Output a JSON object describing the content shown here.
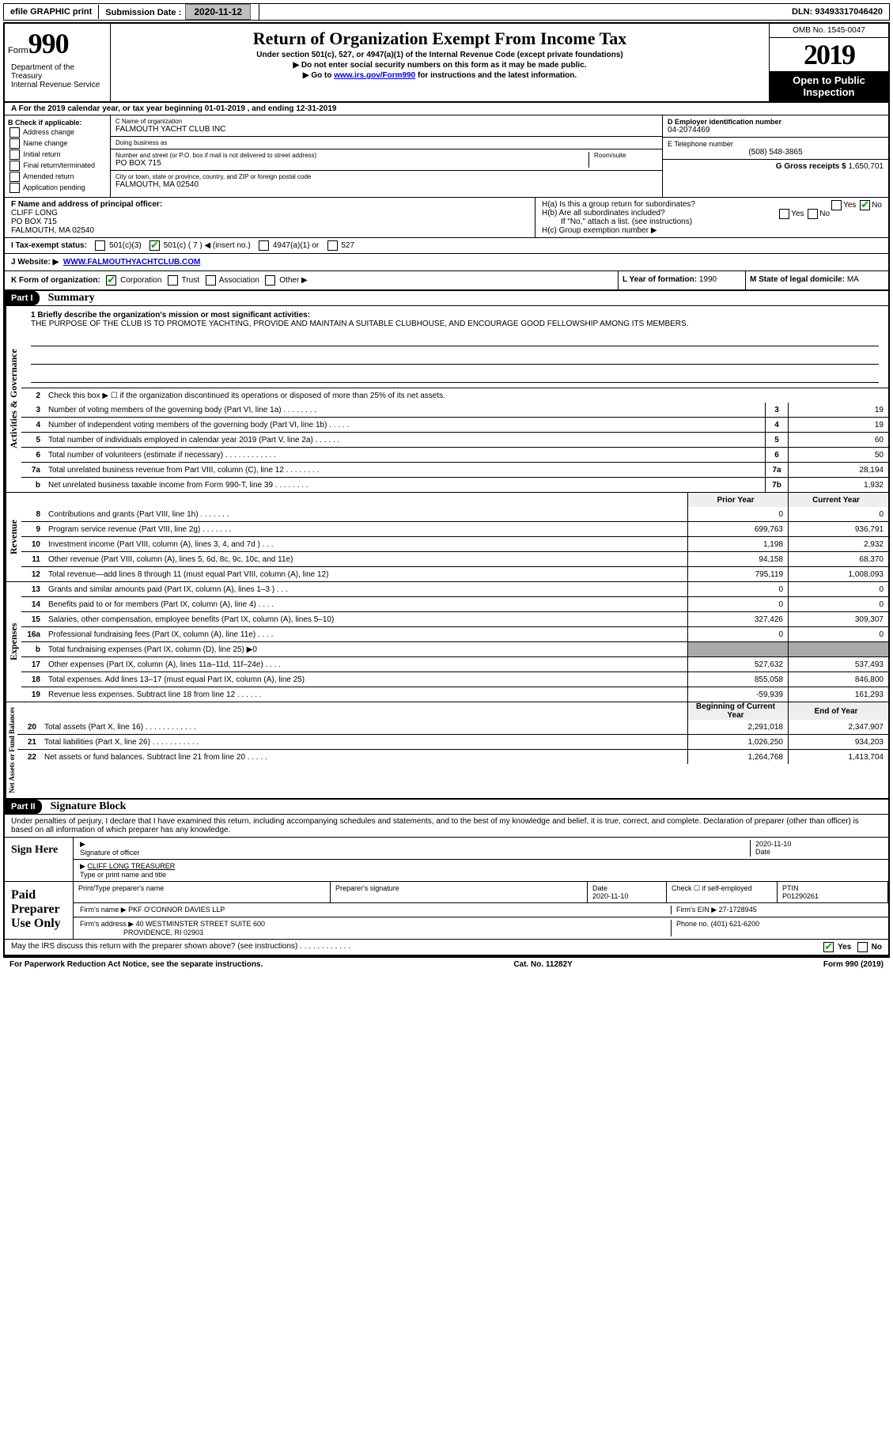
{
  "topbar": {
    "efile": "efile GRAPHIC print",
    "sub_label": "Submission Date : ",
    "sub_date": "2020-11-12",
    "dln_label": "DLN: ",
    "dln": "93493317046420"
  },
  "header": {
    "form_word": "Form",
    "form_num": "990",
    "title": "Return of Organization Exempt From Income Tax",
    "subtitle": "Under section 501(c), 527, or 4947(a)(1) of the Internal Revenue Code (except private foundations)",
    "note1": "▶ Do not enter social security numbers on this form as it may be made public.",
    "note2_pre": "▶ Go to ",
    "note2_link": "www.irs.gov/Form990",
    "note2_post": " for instructions and the latest information.",
    "omb": "OMB No. 1545-0047",
    "year": "2019",
    "open": "Open to Public Inspection",
    "dept": "Department of the Treasury\nInternal Revenue Service"
  },
  "A": {
    "text": "A For the 2019 calendar year, or tax year beginning 01-01-2019     , and ending 12-31-2019"
  },
  "B": {
    "label": "B Check if applicable:",
    "items": [
      "Address change",
      "Name change",
      "Initial return",
      "Final return/terminated",
      "Amended return",
      "Application pending"
    ]
  },
  "C": {
    "name_label": "C Name of organization",
    "name": "FALMOUTH YACHT CLUB INC",
    "dba_label": "Doing business as",
    "dba": "",
    "street_label": "Number and street (or P.O. box if mail is not delivered to street address)",
    "room_label": "Room/suite",
    "street": "PO BOX 715",
    "city_label": "City or town, state or province, country, and ZIP or foreign postal code",
    "city": "FALMOUTH, MA  02540"
  },
  "D": {
    "label": "D Employer identification number",
    "ein": "04-2074469"
  },
  "E": {
    "label": "E Telephone number",
    "phone": "(508) 548-3865"
  },
  "G": {
    "label": "G Gross receipts $",
    "amount": "1,650,701"
  },
  "F": {
    "label": "F  Name and address of principal officer:",
    "name": "CLIFF LONG",
    "addr1": "PO BOX 715",
    "addr2": "FALMOUTH, MA  02540"
  },
  "H": {
    "a": "H(a)  Is this a group return for subordinates?",
    "a_yes": "Yes",
    "a_no": "No",
    "b": "H(b)  Are all subordinates included?",
    "b_yes": "Yes",
    "b_no": "No",
    "b_note": "If \"No,\" attach a list. (see instructions)",
    "c": "H(c)  Group exemption number ▶"
  },
  "I": {
    "label": "I    Tax-exempt status:",
    "opts": [
      "501(c)(3)",
      "501(c) ( 7 ) ◀ (insert no.)",
      "4947(a)(1) or",
      "527"
    ]
  },
  "J": {
    "label": "J    Website: ▶",
    "url": "WWW.FALMOUTHYACHTCLUB.COM"
  },
  "K": {
    "label": "K Form of organization:",
    "opts": [
      "Corporation",
      "Trust",
      "Association",
      "Other ▶"
    ]
  },
  "L": {
    "label": "L Year of formation:",
    "val": "1990"
  },
  "M": {
    "label": "M State of legal domicile:",
    "val": "MA"
  },
  "part1": {
    "hdr": "Part I",
    "title": "Summary",
    "l1_label": "1  Briefly describe the organization's mission or most significant activities:",
    "mission": "THE PURPOSE OF THE CLUB IS TO PROMOTE YACHTING, PROVIDE AND MAINTAIN A SUITABLE CLUBHOUSE, AND ENCOURAGE GOOD FELLOWSHIP AMONG ITS MEMBERS.",
    "l2": "Check this box ▶ ☐  if the organization discontinued its operations or disposed of more than 25% of its net assets.",
    "vtab_ag": "Activities & Governance",
    "vtab_rev": "Revenue",
    "vtab_exp": "Expenses",
    "vtab_na": "Net Assets or Fund Balances",
    "lines_ag": [
      {
        "n": "3",
        "t": "Number of voting members of the governing body (Part VI, line 1a)  .    .    .    .    .    .    .    .",
        "box": "3",
        "v": "19"
      },
      {
        "n": "4",
        "t": "Number of independent voting members of the governing body (Part VI, line 1b)  .    .    .    .    .",
        "box": "4",
        "v": "19"
      },
      {
        "n": "5",
        "t": "Total number of individuals employed in calendar year 2019 (Part V, line 2a)  .    .    .    .    .    .",
        "box": "5",
        "v": "60"
      },
      {
        "n": "6",
        "t": "Total number of volunteers (estimate if necessary)    .    .    .    .    .    .    .    .    .    .    .    .",
        "box": "6",
        "v": "50"
      },
      {
        "n": "7a",
        "t": "Total unrelated business revenue from Part VIII, column (C), line 12  .    .    .    .    .    .    .    .",
        "box": "7a",
        "v": "28,194"
      },
      {
        "n": "b",
        "t": "Net unrelated business taxable income from Form 990-T, line 39    .    .    .    .    .    .    .    .",
        "box": "7b",
        "v": "1,932"
      }
    ],
    "py_hdr": "Prior Year",
    "cy_hdr": "Current Year",
    "lines_rev": [
      {
        "n": "8",
        "t": "Contributions and grants (Part VIII, line 1h)   .    .    .    .    .    .    .",
        "py": "0",
        "cy": "0"
      },
      {
        "n": "9",
        "t": "Program service revenue (Part VIII, line 2g)   .    .    .    .    .    .    .",
        "py": "699,763",
        "cy": "936,791"
      },
      {
        "n": "10",
        "t": "Investment income (Part VIII, column (A), lines 3, 4, and 7d )   .    .    .",
        "py": "1,198",
        "cy": "2,932"
      },
      {
        "n": "11",
        "t": "Other revenue (Part VIII, column (A), lines 5, 6d, 8c, 9c, 10c, and 11e)",
        "py": "94,158",
        "cy": "68,370"
      },
      {
        "n": "12",
        "t": "Total revenue—add lines 8 through 11 (must equal Part VIII, column (A), line 12)",
        "py": "795,119",
        "cy": "1,008,093"
      }
    ],
    "lines_exp": [
      {
        "n": "13",
        "t": "Grants and similar amounts paid (Part IX, column (A), lines 1–3 )  .    .    .",
        "py": "0",
        "cy": "0"
      },
      {
        "n": "14",
        "t": "Benefits paid to or for members (Part IX, column (A), line 4)  .    .    .    .",
        "py": "0",
        "cy": "0"
      },
      {
        "n": "15",
        "t": "Salaries, other compensation, employee benefits (Part IX, column (A), lines 5–10)",
        "py": "327,426",
        "cy": "309,307"
      },
      {
        "n": "16a",
        "t": "Professional fundraising fees (Part IX, column (A), line 11e)  .    .    .    .",
        "py": "0",
        "cy": "0"
      },
      {
        "n": "b",
        "t": "Total fundraising expenses (Part IX, column (D), line 25) ▶0",
        "py": "",
        "cy": "",
        "gray": true
      },
      {
        "n": "17",
        "t": "Other expenses (Part IX, column (A), lines 11a–11d, 11f–24e)  .    .    .    .",
        "py": "527,632",
        "cy": "537,493"
      },
      {
        "n": "18",
        "t": "Total expenses. Add lines 13–17 (must equal Part IX, column (A), line 25)",
        "py": "855,058",
        "cy": "846,800"
      },
      {
        "n": "19",
        "t": "Revenue less expenses. Subtract line 18 from line 12  .    .    .    .    .    .",
        "py": "-59,939",
        "cy": "161,293"
      }
    ],
    "na_hdr_py": "Beginning of Current Year",
    "na_hdr_cy": "End of Year",
    "lines_na": [
      {
        "n": "20",
        "t": "Total assets (Part X, line 16)  .    .    .    .    .    .    .    .    .    .    .    .",
        "py": "2,291,018",
        "cy": "2,347,907"
      },
      {
        "n": "21",
        "t": "Total liabilities (Part X, line 26)  .    .    .    .    .    .    .    .    .    .    .",
        "py": "1,026,250",
        "cy": "934,203"
      },
      {
        "n": "22",
        "t": "Net assets or fund balances. Subtract line 21 from line 20  .    .    .    .    .",
        "py": "1,264,768",
        "cy": "1,413,704"
      }
    ]
  },
  "part2": {
    "hdr": "Part II",
    "title": "Signature Block",
    "decl": "Under penalties of perjury, I declare that I have examined this return, including accompanying schedules and statements, and to the best of my knowledge and belief, it is true, correct, and complete. Declaration of preparer (other than officer) is based on all information of which preparer has any knowledge.",
    "sign_here": "Sign Here",
    "sig_of_officer": "Signature of officer",
    "date_label": "Date",
    "date": "2020-11-10",
    "officer": "CLIFF LONG  TREASURER",
    "type_label": "Type or print name and title",
    "paid": "Paid Preparer Use Only",
    "prep_name_label": "Print/Type preparer's name",
    "prep_sig_label": "Preparer's signature",
    "prep_date": "2020-11-10",
    "check_self": "Check ☐ if self-employed",
    "ptin_label": "PTIN",
    "ptin": "P01290261",
    "firm_name_label": "Firm's name    ▶",
    "firm_name": "PKF O'CONNOR DAVIES LLP",
    "firm_ein_label": "Firm's EIN ▶",
    "firm_ein": "27-1728945",
    "firm_addr_label": "Firm's address ▶",
    "firm_addr1": "40 WESTMINSTER STREET SUITE 600",
    "firm_addr2": "PROVIDENCE, RI  02903",
    "firm_phone_label": "Phone no.",
    "firm_phone": "(401) 621-6200",
    "discuss": "May the IRS discuss this return with the preparer shown above? (see instructions)   .    .    .    .    .    .    .    .    .    .    .    .",
    "yes": "Yes",
    "no": "No"
  },
  "footer": {
    "left": "For Paperwork Reduction Act Notice, see the separate instructions.",
    "mid": "Cat. No. 11282Y",
    "right": "Form 990 (2019)"
  },
  "colors": {
    "link": "#0000ee",
    "check": "#00aa00",
    "hdr_bg": "#000000"
  }
}
